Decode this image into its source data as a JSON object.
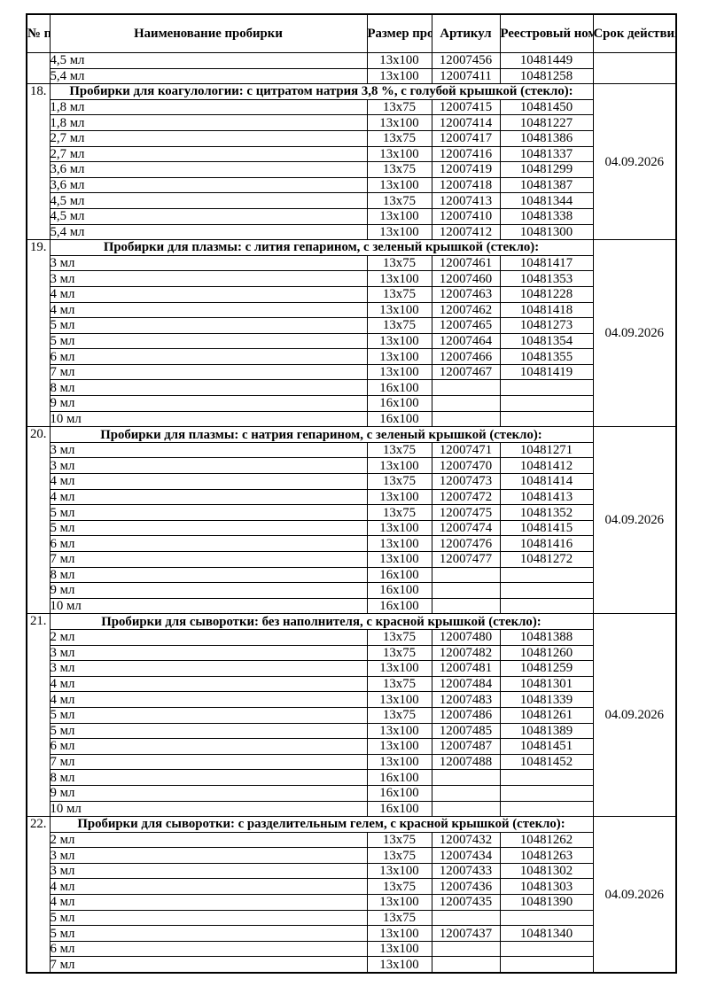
{
  "page": {
    "background_color": "#ffffff",
    "text_color": "#000000",
    "border_color": "#000000"
  },
  "table": {
    "headers": {
      "num": "№ п/п",
      "name": "Наименование пробирки",
      "size": "Размер пробирки",
      "article": "Артикул",
      "registry": "Реестровый номер",
      "term": "Срок действия"
    },
    "continuation": {
      "number": "",
      "term": "",
      "rows": [
        {
          "name": "4,5 мл",
          "size": "13x100",
          "article": "12007456",
          "registry": "10481449"
        },
        {
          "name": "5,4 мл",
          "size": "13x100",
          "article": "12007411",
          "registry": "10481258"
        }
      ]
    },
    "sections": [
      {
        "number": "18.",
        "title": "Пробирки для коагулологии: с цитратом натрия 3,8 %, с голубой крышкой (стекло):",
        "term": "04.09.2026",
        "rows": [
          {
            "name": "1,8 мл",
            "size": "13x75",
            "article": "12007415",
            "registry": "10481450"
          },
          {
            "name": "1,8 мл",
            "size": "13x100",
            "article": "12007414",
            "registry": "10481227"
          },
          {
            "name": "2,7 мл",
            "size": "13x75",
            "article": "12007417",
            "registry": "10481386"
          },
          {
            "name": "2,7 мл",
            "size": "13x100",
            "article": "12007416",
            "registry": "10481337"
          },
          {
            "name": "3,6 мл",
            "size": "13x75",
            "article": "12007419",
            "registry": "10481299"
          },
          {
            "name": "3,6 мл",
            "size": "13x100",
            "article": "12007418",
            "registry": "10481387"
          },
          {
            "name": "4,5 мл",
            "size": "13x75",
            "article": "12007413",
            "registry": "10481344"
          },
          {
            "name": "4,5 мл",
            "size": "13x100",
            "article": "12007410",
            "registry": "10481338"
          },
          {
            "name": "5,4 мл",
            "size": "13x100",
            "article": "12007412",
            "registry": "10481300"
          }
        ]
      },
      {
        "number": "19.",
        "title": "Пробирки для плазмы: с лития гепарином, с зеленый крышкой (стекло):",
        "term": "04.09.2026",
        "rows": [
          {
            "name": "3 мл",
            "size": "13x75",
            "article": "12007461",
            "registry": "10481417"
          },
          {
            "name": "3 мл",
            "size": "13x100",
            "article": "12007460",
            "registry": "10481353"
          },
          {
            "name": "4 мл",
            "size": "13x75",
            "article": "12007463",
            "registry": "10481228"
          },
          {
            "name": "4 мл",
            "size": "13x100",
            "article": "12007462",
            "registry": "10481418"
          },
          {
            "name": "5 мл",
            "size": "13x75",
            "article": "12007465",
            "registry": "10481273"
          },
          {
            "name": "5 мл",
            "size": "13x100",
            "article": "12007464",
            "registry": "10481354"
          },
          {
            "name": "6 мл",
            "size": "13x100",
            "article": "12007466",
            "registry": "10481355"
          },
          {
            "name": "7 мл",
            "size": "13x100",
            "article": "12007467",
            "registry": "10481419"
          },
          {
            "name": "8 мл",
            "size": "16x100",
            "article": "",
            "registry": ""
          },
          {
            "name": "9 мл",
            "size": "16x100",
            "article": "",
            "registry": ""
          },
          {
            "name": "10 мл",
            "size": "16x100",
            "article": "",
            "registry": ""
          }
        ]
      },
      {
        "number": "20.",
        "title": "Пробирки для плазмы: с натрия гепарином, с зеленый крышкой (стекло):",
        "term": "04.09.2026",
        "rows": [
          {
            "name": "3 мл",
            "size": "13x75",
            "article": "12007471",
            "registry": "10481271"
          },
          {
            "name": "3 мл",
            "size": "13x100",
            "article": "12007470",
            "registry": "10481412"
          },
          {
            "name": "4 мл",
            "size": "13x75",
            "article": "12007473",
            "registry": "10481414"
          },
          {
            "name": "4 мл",
            "size": "13x100",
            "article": "12007472",
            "registry": "10481413"
          },
          {
            "name": "5 мл",
            "size": "13x75",
            "article": "12007475",
            "registry": "10481352"
          },
          {
            "name": "5 мл",
            "size": "13x100",
            "article": "12007474",
            "registry": "10481415"
          },
          {
            "name": "6 мл",
            "size": "13x100",
            "article": "12007476",
            "registry": "10481416"
          },
          {
            "name": "7 мл",
            "size": "13x100",
            "article": "12007477",
            "registry": "10481272"
          },
          {
            "name": "8 мл",
            "size": "16x100",
            "article": "",
            "registry": ""
          },
          {
            "name": "9 мл",
            "size": "16x100",
            "article": "",
            "registry": ""
          },
          {
            "name": "10 мл",
            "size": "16x100",
            "article": "",
            "registry": ""
          }
        ]
      },
      {
        "number": "21.",
        "title": "Пробирки для сыворотки: без наполнителя, с красной крышкой (стекло):",
        "term": "04.09.2026",
        "rows": [
          {
            "name": "2 мл",
            "size": "13x75",
            "article": "12007480",
            "registry": "10481388"
          },
          {
            "name": "3 мл",
            "size": "13x75",
            "article": "12007482",
            "registry": "10481260"
          },
          {
            "name": "3 мл",
            "size": "13x100",
            "article": "12007481",
            "registry": "10481259"
          },
          {
            "name": "4 мл",
            "size": "13x75",
            "article": "12007484",
            "registry": "10481301"
          },
          {
            "name": "4 мл",
            "size": "13x100",
            "article": "12007483",
            "registry": "10481339"
          },
          {
            "name": "5 мл",
            "size": "13x75",
            "article": "12007486",
            "registry": "10481261"
          },
          {
            "name": "5 мл",
            "size": "13x100",
            "article": "12007485",
            "registry": "10481389"
          },
          {
            "name": "6 мл",
            "size": "13x100",
            "article": "12007487",
            "registry": "10481451"
          },
          {
            "name": "7 мл",
            "size": "13x100",
            "article": "12007488",
            "registry": "10481452"
          },
          {
            "name": "8 мл",
            "size": "16x100",
            "article": "",
            "registry": ""
          },
          {
            "name": "9 мл",
            "size": "16x100",
            "article": "",
            "registry": ""
          },
          {
            "name": "10 мл",
            "size": "16x100",
            "article": "",
            "registry": ""
          }
        ]
      },
      {
        "number": "22.",
        "title": "Пробирки для сыворотки: с разделительным гелем, с красной крышкой (стекло):",
        "term": "04.09.2026",
        "rows": [
          {
            "name": "2 мл",
            "size": "13x75",
            "article": "12007432",
            "registry": "10481262"
          },
          {
            "name": "3 мл",
            "size": "13x75",
            "article": "12007434",
            "registry": "10481263"
          },
          {
            "name": "3 мл",
            "size": "13x100",
            "article": "12007433",
            "registry": "10481302"
          },
          {
            "name": "4 мл",
            "size": "13x75",
            "article": "12007436",
            "registry": "10481303"
          },
          {
            "name": "4 мл",
            "size": "13x100",
            "article": "12007435",
            "registry": "10481390"
          },
          {
            "name": "5 мл",
            "size": "13x75",
            "article": "",
            "registry": ""
          },
          {
            "name": "5 мл",
            "size": "13x100",
            "article": "12007437",
            "registry": "10481340"
          },
          {
            "name": "6 мл",
            "size": "13x100",
            "article": "",
            "registry": ""
          },
          {
            "name": "7 мл",
            "size": "13x100",
            "article": "",
            "registry": ""
          }
        ]
      }
    ]
  }
}
